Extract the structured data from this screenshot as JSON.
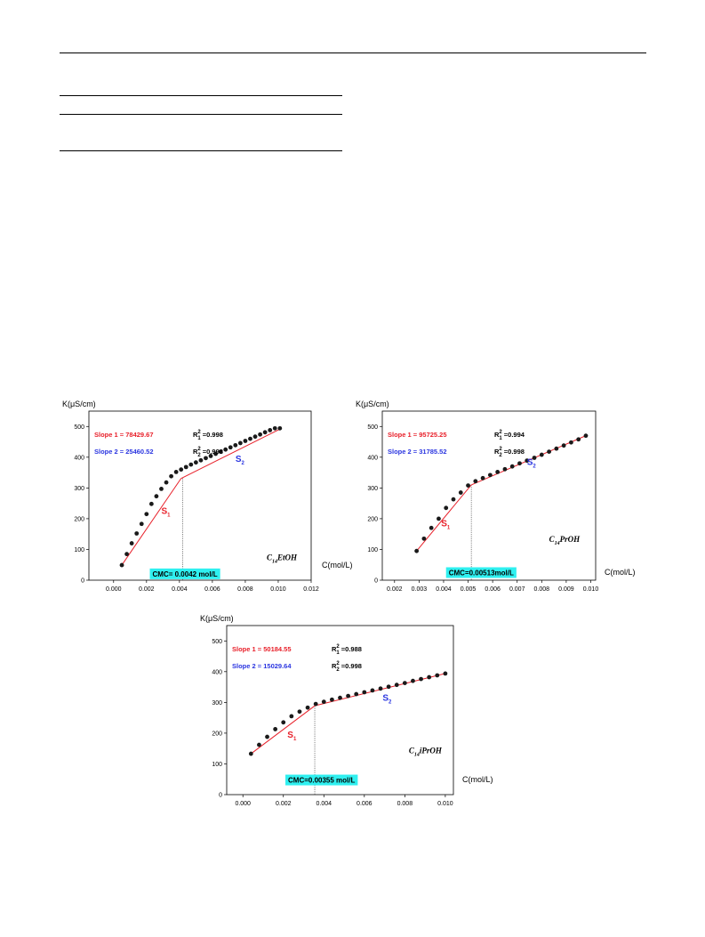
{
  "chart_data": [
    {
      "type": "scatter",
      "ylabel": "K(μS/cm)",
      "xlabel": "C(mol/L)",
      "compound_main": "C",
      "compound_sub": "14",
      "compound_rest": "EtOH",
      "slope1_label": "Slope 1 =",
      "slope1_value": "78429.67",
      "r1_value": "=0.998",
      "slope2_label": "Slope 2 =",
      "slope2_value": "25460.52",
      "r2_value": "=0.998",
      "s1_label": "S",
      "s2_label": "S",
      "cmc_label": "CMC= 0.0042 mol/L",
      "cmc_x": 0.0042,
      "xlim": [
        -0.0015,
        0.012
      ],
      "ylim": [
        0,
        550
      ],
      "xticks": [
        "0.000",
        "0.002",
        "0.004",
        "0.006",
        "0.008",
        "0.010",
        "0.012"
      ],
      "xtick_values": [
        0,
        0.002,
        0.004,
        0.006,
        0.008,
        0.01,
        0.012
      ],
      "yticks": [
        "0",
        "100",
        "200",
        "300",
        "400",
        "500"
      ],
      "ytick_values": [
        0,
        100,
        200,
        300,
        400,
        500
      ],
      "x": [
        0.0005,
        0.0008,
        0.0011,
        0.0014,
        0.0017,
        0.002,
        0.0023,
        0.0026,
        0.0029,
        0.0032,
        0.0035,
        0.0038,
        0.0041,
        0.0044,
        0.0047,
        0.005,
        0.0053,
        0.0056,
        0.0059,
        0.0062,
        0.0065,
        0.0068,
        0.0071,
        0.0074,
        0.0077,
        0.008,
        0.0083,
        0.0086,
        0.0089,
        0.0092,
        0.0095,
        0.0098,
        0.0101
      ],
      "y": [
        49,
        85,
        120,
        152,
        183,
        215,
        248,
        273,
        297,
        318,
        338,
        352,
        360,
        368,
        376,
        383,
        390,
        397,
        404,
        411,
        418,
        425,
        432,
        439,
        446,
        453,
        460,
        467,
        474,
        481,
        488,
        494,
        494
      ],
      "fit1": [
        [
          0.0005,
          49
        ],
        [
          0.0041,
          331
        ]
      ],
      "fit2": [
        [
          0.0041,
          331
        ],
        [
          0.0102,
          494
        ]
      ]
    },
    {
      "type": "scatter",
      "ylabel": "K(μS/cm)",
      "xlabel": "C(mol/L)",
      "compound_main": "C",
      "compound_sub": "14",
      "compound_rest": "PrOH",
      "slope1_label": "Slope 1 =",
      "slope1_value": "95725.25",
      "r1_value": "=0.994",
      "slope2_label": "Slope 2 =",
      "slope2_value": "31785.52",
      "r2_value": "=0.998",
      "s1_label": "S",
      "s2_label": "S",
      "cmc_label": "CMC=0.00513mol/L",
      "cmc_x": 0.00513,
      "xlim": [
        0.0015,
        0.0102
      ],
      "ylim": [
        0,
        550
      ],
      "xticks": [
        "0.002",
        "0.003",
        "0.004",
        "0.005",
        "0.006",
        "0.007",
        "0.008",
        "0.009",
        "0.010"
      ],
      "xtick_values": [
        0.002,
        0.003,
        0.004,
        0.005,
        0.006,
        0.007,
        0.008,
        0.009,
        0.01
      ],
      "yticks": [
        "0",
        "100",
        "200",
        "300",
        "400",
        "500"
      ],
      "ytick_values": [
        0,
        100,
        200,
        300,
        400,
        500
      ],
      "x": [
        0.0029,
        0.0032,
        0.0035,
        0.0038,
        0.0041,
        0.0044,
        0.0047,
        0.005,
        0.0053,
        0.0056,
        0.0059,
        0.0062,
        0.0065,
        0.0068,
        0.0071,
        0.0074,
        0.0077,
        0.008,
        0.0083,
        0.0086,
        0.0089,
        0.0092,
        0.0095,
        0.0098
      ],
      "y": [
        95,
        135,
        170,
        200,
        235,
        263,
        285,
        308,
        322,
        332,
        342,
        352,
        361,
        370,
        380,
        389,
        398,
        408,
        418,
        428,
        438,
        448,
        458,
        470
      ],
      "fit1": [
        [
          0.0029,
          95
        ],
        [
          0.00513,
          310
        ]
      ],
      "fit2": [
        [
          0.00513,
          310
        ],
        [
          0.0098,
          470
        ]
      ]
    },
    {
      "type": "scatter",
      "ylabel": "K(μS/cm)",
      "xlabel": "C(mol/L)",
      "compound_main": "C",
      "compound_sub": "14",
      "compound_rest": "iPrOH",
      "slope1_label": "Slope 1 =",
      "slope1_value": "50184.55",
      "r1_value": "=0.988",
      "slope2_label": "Slope 2 =",
      "slope2_value": "15029.64",
      "r2_value": "=0.998",
      "s1_label": "S",
      "s2_label": "S",
      "cmc_label": "CMC=0.00355 mol/L",
      "cmc_x": 0.00355,
      "xlim": [
        -0.0008,
        0.0104
      ],
      "ylim": [
        0,
        550
      ],
      "xticks": [
        "0.000",
        "0.002",
        "0.004",
        "0.006",
        "0.008",
        "0.010"
      ],
      "xtick_values": [
        0,
        0.002,
        0.004,
        0.006,
        0.008,
        0.01
      ],
      "yticks": [
        "0",
        "100",
        "200",
        "300",
        "400",
        "500"
      ],
      "ytick_values": [
        0,
        100,
        200,
        300,
        400,
        500
      ],
      "x": [
        0.0004,
        0.0008,
        0.0012,
        0.0016,
        0.002,
        0.0024,
        0.0028,
        0.0032,
        0.0036,
        0.004,
        0.0044,
        0.0048,
        0.0052,
        0.0056,
        0.006,
        0.0064,
        0.0068,
        0.0072,
        0.0076,
        0.008,
        0.0084,
        0.0088,
        0.0092,
        0.0096,
        0.01
      ],
      "y": [
        133,
        162,
        188,
        213,
        235,
        255,
        270,
        283,
        295,
        302,
        309,
        315,
        321,
        327,
        333,
        339,
        345,
        351,
        357,
        363,
        370,
        376,
        382,
        388,
        394
      ],
      "fit1": [
        [
          0.0004,
          133
        ],
        [
          0.00355,
          289
        ]
      ],
      "fit2": [
        [
          0.00355,
          289
        ],
        [
          0.01,
          394
        ]
      ]
    }
  ]
}
